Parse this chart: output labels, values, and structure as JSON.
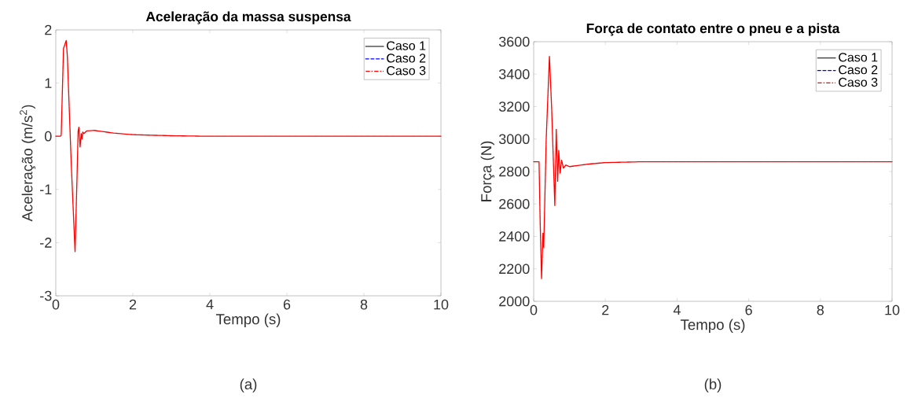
{
  "chart_data": [
    {
      "type": "line",
      "title": "Aceleração da massa suspensa",
      "xlabel": "Tempo (s)",
      "ylabel": "Aceleração (m/s$^{2}$)",
      "annotations": [
        "(a)"
      ],
      "x": [
        0,
        0.12,
        0.14,
        0.2,
        0.27,
        0.3,
        0.4,
        0.5,
        0.55,
        0.58,
        0.6,
        0.63,
        0.66,
        0.68,
        0.7,
        0.73,
        0.8,
        1.0,
        1.5,
        2,
        3,
        4,
        10
      ],
      "series": [
        {
          "name": "Caso 1",
          "color": "#000000",
          "line_style": "solid",
          "values": [
            null,
            null,
            null,
            null,
            null,
            null,
            null,
            null,
            null,
            null,
            null,
            null,
            null,
            null,
            null,
            null,
            null,
            null,
            null,
            null,
            null,
            null,
            null
          ]
        },
        {
          "name": "Caso 2",
          "color": "#0000ff",
          "line_style": "dashed",
          "values": [
            null,
            null,
            null,
            null,
            null,
            null,
            null,
            null,
            null,
            null,
            null,
            null,
            null,
            null,
            null,
            null,
            null,
            null,
            null,
            null,
            null,
            null,
            null
          ]
        },
        {
          "name": "Caso 3",
          "color": "#ff0000",
          "line_style": "dashdot",
          "values": [
            0,
            0,
            0.02,
            1.65,
            1.8,
            1.5,
            -0.5,
            -2.17,
            -0.8,
            0.1,
            0.17,
            -0.2,
            0.05,
            -0.05,
            0.08,
            0.05,
            0.1,
            0.11,
            0.06,
            0.03,
            0.01,
            0,
            0
          ]
        }
      ],
      "xlim": [
        0,
        10
      ],
      "ylim": [
        -3,
        2
      ],
      "xticks": [
        0,
        2,
        4,
        6,
        8,
        10
      ],
      "yticks": [
        -3,
        -2,
        -1,
        0,
        1,
        2
      ],
      "grid": false,
      "legend": "top right",
      "marker": "none"
    },
    {
      "type": "line",
      "title": "Força de contato entre o pneu e a pista",
      "xlabel": "Tempo (s)",
      "ylabel": "Força (N)",
      "annotations": [
        "(b)"
      ],
      "x": [
        0,
        0.15,
        0.18,
        0.22,
        0.26,
        0.28,
        0.35,
        0.44,
        0.5,
        0.59,
        0.63,
        0.67,
        0.7,
        0.74,
        0.78,
        0.83,
        0.9,
        1.0,
        1.5,
        2,
        3,
        10
      ],
      "series": [
        {
          "name": "Caso 1",
          "color": "#000000",
          "line_style": "solid",
          "values": [
            null,
            null,
            null,
            null,
            null,
            null,
            null,
            null,
            null,
            null,
            null,
            null,
            null,
            null,
            null,
            null,
            null,
            null,
            null,
            null,
            null,
            null
          ]
        },
        {
          "name": "Caso 2",
          "color": "#0000ff",
          "line_style": "dashed",
          "values": [
            null,
            null,
            null,
            null,
            null,
            null,
            null,
            null,
            null,
            null,
            null,
            null,
            null,
            null,
            null,
            null,
            null,
            null,
            null,
            null,
            null,
            null
          ]
        },
        {
          "name": "Caso 3",
          "color": "#ff0000",
          "line_style": "dashdot",
          "values": [
            2860,
            2860,
            2500,
            2140,
            2420,
            2330,
            3000,
            3510,
            3200,
            2590,
            3060,
            2740,
            2930,
            2790,
            2870,
            2820,
            2840,
            2830,
            2845,
            2855,
            2860,
            2860
          ]
        }
      ],
      "xlim": [
        0,
        10
      ],
      "ylim": [
        2000,
        3600
      ],
      "xticks": [
        0,
        2,
        4,
        6,
        8,
        10
      ],
      "yticks": [
        2000,
        2200,
        2400,
        2600,
        2800,
        3000,
        3200,
        3400,
        3600
      ],
      "grid": false,
      "legend": "top right",
      "marker": "none"
    }
  ]
}
